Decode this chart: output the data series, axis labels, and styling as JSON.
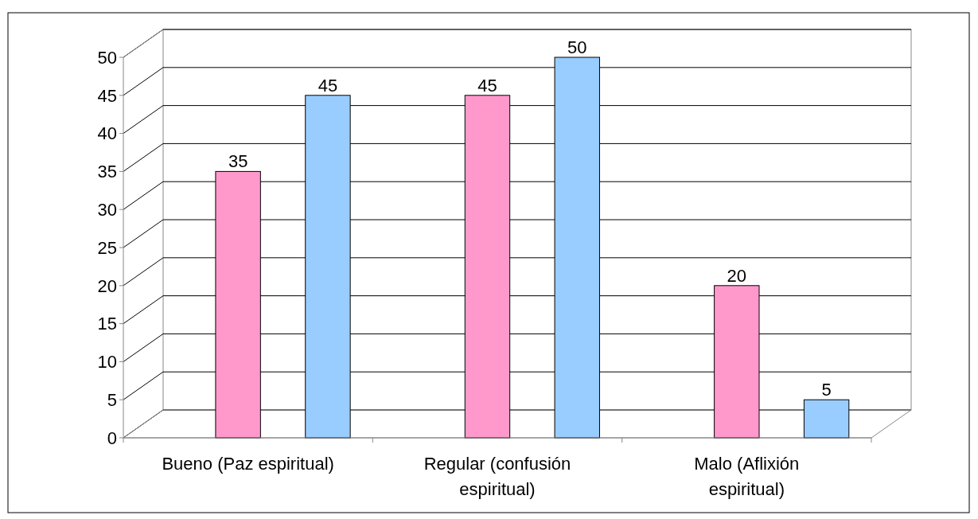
{
  "chart_data": {
    "type": "bar",
    "categories": [
      "Bueno (Paz espiritual)",
      "Regular (confusión espiritual)",
      "Malo (Aflixión espiritual)"
    ],
    "series": [
      {
        "color": "#ff99cc",
        "values": [
          35,
          45,
          20
        ]
      },
      {
        "color": "#99ccff",
        "values": [
          45,
          50,
          5
        ]
      }
    ],
    "ylim": [
      0,
      50
    ],
    "yticks": [
      0,
      5,
      10,
      15,
      20,
      25,
      30,
      35,
      40,
      45,
      50
    ],
    "grid": "y",
    "data_labels": true
  }
}
